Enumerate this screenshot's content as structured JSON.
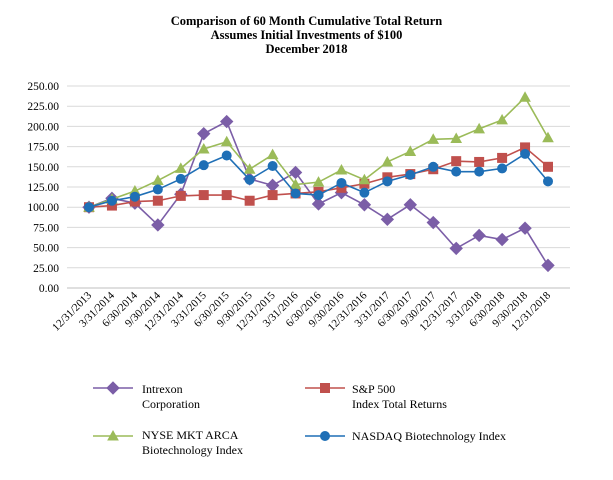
{
  "chart_data": {
    "type": "line",
    "title": [
      "Comparison of 60 Month Cumulative Total Return",
      "Assumes Initial Investments of $100",
      "December 2018"
    ],
    "xlabel": "",
    "ylabel": "",
    "ylim": [
      0,
      250
    ],
    "yticks": [
      "0.00",
      "25.00",
      "50.00",
      "75.00",
      "100.00",
      "125.00",
      "150.00",
      "175.00",
      "200.00",
      "225.00",
      "250.00"
    ],
    "grid": true,
    "legend_position": "bottom",
    "categories": [
      "12/31/2013",
      "3/31/2014",
      "6/30/2014",
      "9/30/2014",
      "12/31/2014",
      "3/31/2015",
      "6/30/2015",
      "9/30/2015",
      "12/31/2015",
      "3/31/2016",
      "6/30/2016",
      "9/30/2016",
      "12/31/2016",
      "3/31/2017",
      "6/30/2017",
      "9/30/2017",
      "12/31/2017",
      "3/31/2018",
      "6/30/2018",
      "9/30/2018",
      "12/31/2018"
    ],
    "series": [
      {
        "name": "Intrexon Corporation",
        "legend_lines": [
          "Intrexon",
          "Corporation"
        ],
        "color": "#7b5ea7",
        "marker": "diamond",
        "values": [
          100,
          111,
          105,
          78,
          116,
          191,
          206,
          135,
          127,
          143,
          104,
          118,
          103,
          85,
          103,
          81,
          49,
          65,
          60,
          74,
          28
        ]
      },
      {
        "name": "S&P 500 Index Total Returns",
        "legend_lines": [
          "S&P 500",
          "Index Total Returns"
        ],
        "color": "#c0504d",
        "marker": "square",
        "values": [
          100,
          102,
          107,
          108,
          114,
          115,
          115,
          108,
          115,
          117,
          119,
          124,
          129,
          137,
          141,
          147,
          157,
          156,
          161,
          174,
          150
        ]
      },
      {
        "name": "NYSE MKT ARCA Biotechnology Index",
        "legend_lines": [
          "NYSE MKT ARCA",
          "Biotechnology Index"
        ],
        "color": "#9bbb59",
        "marker": "triangle",
        "values": [
          100,
          110,
          120,
          133,
          148,
          172,
          181,
          147,
          165,
          128,
          131,
          146,
          134,
          156,
          169,
          184,
          185,
          197,
          208,
          236,
          186
        ]
      },
      {
        "name": "NASDAQ Biotechnology Index",
        "legend_lines": [
          "NASDAQ Biotechnology Index"
        ],
        "color": "#1f6fb6",
        "marker": "circle",
        "values": [
          100,
          108,
          113,
          122,
          135,
          152,
          164,
          134,
          151,
          117,
          115,
          130,
          118,
          132,
          140,
          150,
          144,
          144,
          148,
          166,
          132
        ]
      }
    ]
  }
}
